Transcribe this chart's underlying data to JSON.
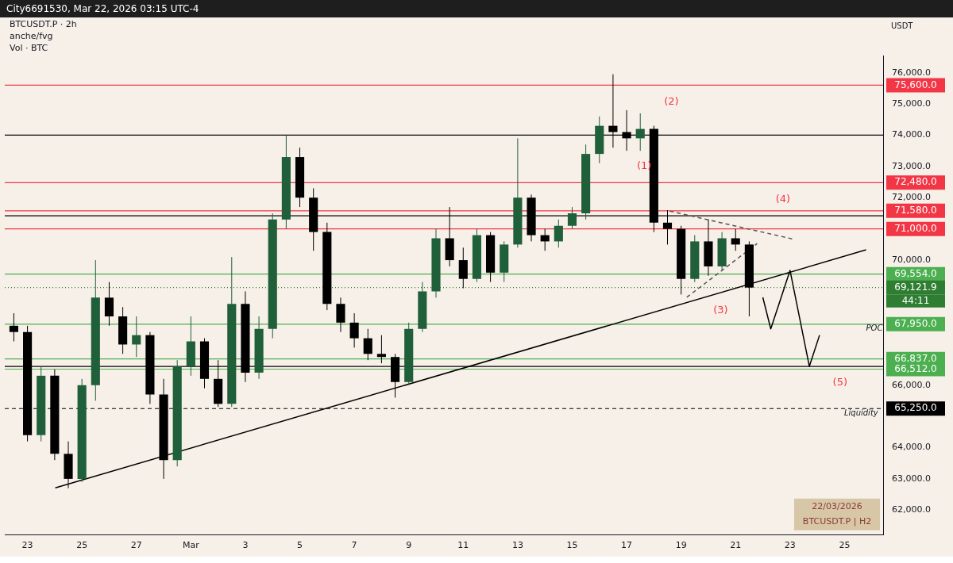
{
  "chart_data": {
    "type": "candlestick",
    "title": "City6691530, Mar 22, 2026 03:15 UTC-4",
    "subtitle": "BTCUSDT.P · 2h",
    "ylabel": "USDT",
    "x": [
      "2026-02-22T12:00",
      "2026-02-23T00:00",
      "2026-02-23T12:00",
      "2026-02-24T00:00",
      "2026-02-24T12:00",
      "2026-02-25T00:00",
      "2026-02-25T12:00",
      "2026-02-26T00:00",
      "2026-02-26T12:00",
      "2026-02-27T00:00",
      "2026-02-27T12:00",
      "2026-02-28T00:00",
      "2026-02-28T12:00",
      "2026-03-01T00:00",
      "2026-03-01T12:00",
      "2026-03-02T00:00",
      "2026-03-02T12:00",
      "2026-03-03T00:00",
      "2026-03-03T12:00",
      "2026-03-04T00:00",
      "2026-03-04T12:00",
      "2026-03-05T00:00",
      "2026-03-05T12:00",
      "2026-03-06T00:00",
      "2026-03-06T12:00",
      "2026-03-07T00:00",
      "2026-03-07T12:00",
      "2026-03-08T00:00",
      "2026-03-08T12:00",
      "2026-03-09T00:00",
      "2026-03-09T12:00",
      "2026-03-10T00:00",
      "2026-03-10T12:00",
      "2026-03-11T00:00",
      "2026-03-11T12:00",
      "2026-03-12T00:00",
      "2026-03-12T12:00",
      "2026-03-13T00:00",
      "2026-03-13T12:00",
      "2026-03-14T00:00",
      "2026-03-14T12:00",
      "2026-03-15T00:00",
      "2026-03-15T12:00",
      "2026-03-16T00:00",
      "2026-03-16T12:00",
      "2026-03-17T00:00",
      "2026-03-17T12:00",
      "2026-03-18T00:00",
      "2026-03-18T12:00",
      "2026-03-19T00:00",
      "2026-03-19T12:00",
      "2026-03-20T00:00",
      "2026-03-20T12:00",
      "2026-03-21T00:00",
      "2026-03-21T12:00"
    ],
    "ohlc": [
      [
        67900,
        68300,
        67400,
        67700
      ],
      [
        67700,
        67900,
        64200,
        64400
      ],
      [
        64400,
        66600,
        64200,
        66300
      ],
      [
        66300,
        66500,
        63600,
        63800
      ],
      [
        63800,
        64200,
        62700,
        63000
      ],
      [
        63000,
        66200,
        62900,
        66000
      ],
      [
        66000,
        70000,
        65500,
        68800
      ],
      [
        68800,
        69300,
        67900,
        68200
      ],
      [
        68200,
        68500,
        67000,
        67300
      ],
      [
        67300,
        68200,
        66900,
        67600
      ],
      [
        67600,
        67700,
        65400,
        65700
      ],
      [
        65700,
        66200,
        63000,
        63600
      ],
      [
        63600,
        66800,
        63400,
        66600
      ],
      [
        66600,
        68200,
        66300,
        67400
      ],
      [
        67400,
        67500,
        65900,
        66200
      ],
      [
        66200,
        66800,
        65300,
        65400
      ],
      [
        65400,
        70100,
        65300,
        68600
      ],
      [
        68600,
        69000,
        66100,
        66400
      ],
      [
        66400,
        68200,
        66200,
        67800
      ],
      [
        67800,
        71500,
        67500,
        71300
      ],
      [
        71300,
        74000,
        71000,
        73300
      ],
      [
        73300,
        73600,
        71700,
        72000
      ],
      [
        72000,
        72300,
        70300,
        70900
      ],
      [
        70900,
        71200,
        68400,
        68600
      ],
      [
        68600,
        68800,
        67700,
        68000
      ],
      [
        68000,
        68300,
        67200,
        67500
      ],
      [
        67500,
        67800,
        66800,
        67000
      ],
      [
        67000,
        67600,
        66700,
        66900
      ],
      [
        66900,
        67000,
        65600,
        66100
      ],
      [
        66100,
        68000,
        66000,
        67800
      ],
      [
        67800,
        69300,
        67700,
        69000
      ],
      [
        69000,
        71000,
        68800,
        70700
      ],
      [
        70700,
        71700,
        69800,
        70000
      ],
      [
        70000,
        70400,
        69100,
        69400
      ],
      [
        69400,
        71000,
        69300,
        70800
      ],
      [
        70800,
        70900,
        69300,
        69600
      ],
      [
        69600,
        70600,
        69300,
        70500
      ],
      [
        70500,
        73900,
        70400,
        72000
      ],
      [
        72000,
        72100,
        70600,
        70800
      ],
      [
        70800,
        71000,
        70300,
        70600
      ],
      [
        70600,
        71300,
        70400,
        71100
      ],
      [
        71100,
        71700,
        71000,
        71500
      ],
      [
        71500,
        73700,
        71300,
        73400
      ],
      [
        73400,
        74600,
        73100,
        74300
      ],
      [
        74300,
        75950,
        73600,
        74100
      ],
      [
        74100,
        74800,
        73500,
        73900
      ],
      [
        73900,
        74700,
        73500,
        74200
      ],
      [
        74200,
        74300,
        70900,
        71200
      ],
      [
        71200,
        71600,
        70500,
        71000
      ],
      [
        71000,
        71100,
        68900,
        69400
      ],
      [
        69400,
        70800,
        69300,
        70600
      ],
      [
        70600,
        71300,
        69500,
        69800
      ],
      [
        69800,
        70900,
        69700,
        70700
      ],
      [
        70700,
        71000,
        70300,
        70500
      ],
      [
        70500,
        70600,
        68200,
        69121.9
      ]
    ],
    "colors": [
      "#000000",
      "#000000",
      "#1f5f3a",
      "#000000",
      "#000000",
      "#1f5f3a",
      "#1f5f3a",
      "#000000",
      "#000000",
      "#1f5f3a",
      "#000000",
      "#000000",
      "#1f5f3a",
      "#1f5f3a",
      "#000000",
      "#000000",
      "#1f5f3a",
      "#000000",
      "#1f5f3a",
      "#1f5f3a",
      "#1f5f3a",
      "#000000",
      "#000000",
      "#000000",
      "#000000",
      "#000000",
      "#000000",
      "#000000",
      "#000000",
      "#1f5f3a",
      "#1f5f3a",
      "#1f5f3a",
      "#000000",
      "#000000",
      "#1f5f3a",
      "#000000",
      "#1f5f3a",
      "#1f5f3a",
      "#000000",
      "#000000",
      "#1f5f3a",
      "#1f5f3a",
      "#1f5f3a",
      "#1f5f3a",
      "#000000",
      "#000000",
      "#1f5f3a",
      "#000000",
      "#000000",
      "#000000",
      "#1f5f3a",
      "#000000",
      "#1f5f3a",
      "#000000",
      "#000000"
    ],
    "series": [
      {
        "type": "line",
        "color": "#000000",
        "x": [
          "2026-02-24T00:30",
          "2026-03-25T19:00"
        ],
        "values": [
          62710,
          70330
        ]
      },
      {
        "type": "line",
        "color": "#555555",
        "line_style": "dashed",
        "x": [
          "2026-03-18T14:00",
          "2026-03-23T02:00"
        ],
        "values": [
          71570,
          70680
        ]
      },
      {
        "type": "line",
        "color": "#555555",
        "line_style": "dashed",
        "x": [
          "2026-03-19T05:00",
          "2026-03-21T19:00"
        ],
        "values": [
          68810,
          70530
        ]
      },
      {
        "type": "line",
        "color": "#000000",
        "x": [
          "2026-03-22T00:00",
          "2026-03-22T07:00",
          "2026-03-23T00:00",
          "2026-03-23T17:00",
          "2026-03-24T02:00"
        ],
        "values": [
          68810,
          67800,
          69670,
          66600,
          67600
        ]
      }
    ],
    "xlim": [
      "2026-02-22T04:00",
      "2026-03-26T10:00"
    ],
    "xticks": [
      {
        "value": "2026-02-23",
        "label": "23"
      },
      {
        "value": "2026-02-25",
        "label": "25"
      },
      {
        "value": "2026-02-27",
        "label": "27"
      },
      {
        "value": "2026-03-01",
        "label": "Mar"
      },
      {
        "value": "2026-03-03",
        "label": "3"
      },
      {
        "value": "2026-03-05",
        "label": "5"
      },
      {
        "value": "2026-03-07",
        "label": "7"
      },
      {
        "value": "2026-03-09",
        "label": "9"
      },
      {
        "value": "2026-03-11",
        "label": "11"
      },
      {
        "value": "2026-03-13",
        "label": "13"
      },
      {
        "value": "2026-03-15",
        "label": "15"
      },
      {
        "value": "2026-03-17",
        "label": "17"
      },
      {
        "value": "2026-03-19",
        "label": "19"
      },
      {
        "value": "2026-03-21",
        "label": "21"
      },
      {
        "value": "2026-03-23",
        "label": "23"
      },
      {
        "value": "2026-03-25",
        "label": "25"
      }
    ],
    "ylim": [
      61200,
      76550
    ],
    "yticks": [
      {
        "value": 62000,
        "label": "62,000.0"
      },
      {
        "value": 63000,
        "label": "63,000.0"
      },
      {
        "value": 64000,
        "label": "64,000.0"
      },
      {
        "value": 66000,
        "label": "66,000.0"
      },
      {
        "value": 70000,
        "label": "70,000.0"
      },
      {
        "value": 72000,
        "label": "72,000.0"
      },
      {
        "value": 73000,
        "label": "73,000.0"
      },
      {
        "value": 74000,
        "label": "74,000.0"
      },
      {
        "value": 75000,
        "label": "75,000.0"
      },
      {
        "value": 76000,
        "label": "76,000.0"
      }
    ],
    "ref_lines": [
      {
        "axis": "y",
        "value": 75600,
        "label": "75,600.0",
        "color": "#f23645"
      },
      {
        "axis": "y",
        "value": 72480,
        "label": "72,480.0",
        "color": "#f23645"
      },
      {
        "axis": "y",
        "value": 71580,
        "label": "71,580.0",
        "color": "#f23645"
      },
      {
        "axis": "y",
        "value": 71000,
        "label": "71,000.0",
        "color": "#f23645"
      },
      {
        "axis": "y",
        "value": 69554,
        "label": "69,554.0",
        "color": "#4caf50"
      },
      {
        "axis": "y",
        "value": 69121.9,
        "label": "69,121.9",
        "color": "#2e7d32",
        "line_style": "dotted"
      },
      {
        "axis": "y",
        "value": 67950,
        "label": "67,950.0",
        "color": "#4caf50"
      },
      {
        "axis": "y",
        "value": 66837,
        "label": "66,837.0",
        "color": "#4caf50"
      },
      {
        "axis": "y",
        "value": 66512,
        "label": "66,512.0",
        "color": "#4caf50"
      },
      {
        "axis": "y",
        "value": 65250,
        "label": "65,250.0",
        "color": "#000000",
        "line_style": "dashed"
      },
      {
        "axis": "y",
        "value": 74000,
        "label": null,
        "color": "#000000"
      },
      {
        "axis": "y",
        "value": 71420,
        "label": null,
        "color": "#000000"
      },
      {
        "axis": "y",
        "value": 66600,
        "label": null,
        "color": "#000000"
      }
    ],
    "annotations": [
      "anche/fvg",
      "Vol · BTC",
      "44:11",
      "22/03/2026",
      "BTCUSDT.P | H2",
      "(1)",
      "(2)",
      "(3)",
      "(4)",
      "(5)",
      "POC",
      "Liquidity"
    ]
  }
}
